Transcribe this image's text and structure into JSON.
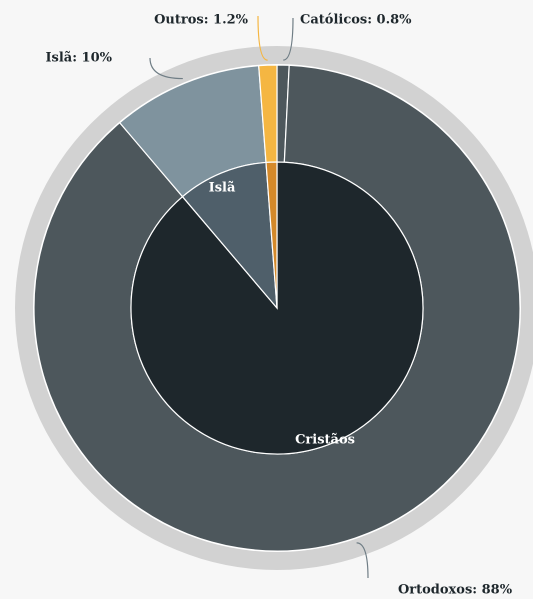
{
  "chart_data": {
    "type": "sunburst",
    "inner": {
      "labels": [
        "Cristãos",
        "Islã",
        null
      ],
      "values": [
        88.8,
        10,
        1.2
      ],
      "colors": [
        "#1e272c",
        "#4f5f6a",
        "#d4892a"
      ]
    },
    "outer": {
      "labels": [
        "Católicos: 0.8%",
        "Ortodoxos: 88%",
        "Islã: 10%",
        "Outros: 1.2%"
      ],
      "values": [
        0.8,
        88,
        10,
        1.2
      ],
      "colors": [
        "#4d575c",
        "#4d575c",
        "#7f939e",
        "#f5b642"
      ]
    }
  }
}
